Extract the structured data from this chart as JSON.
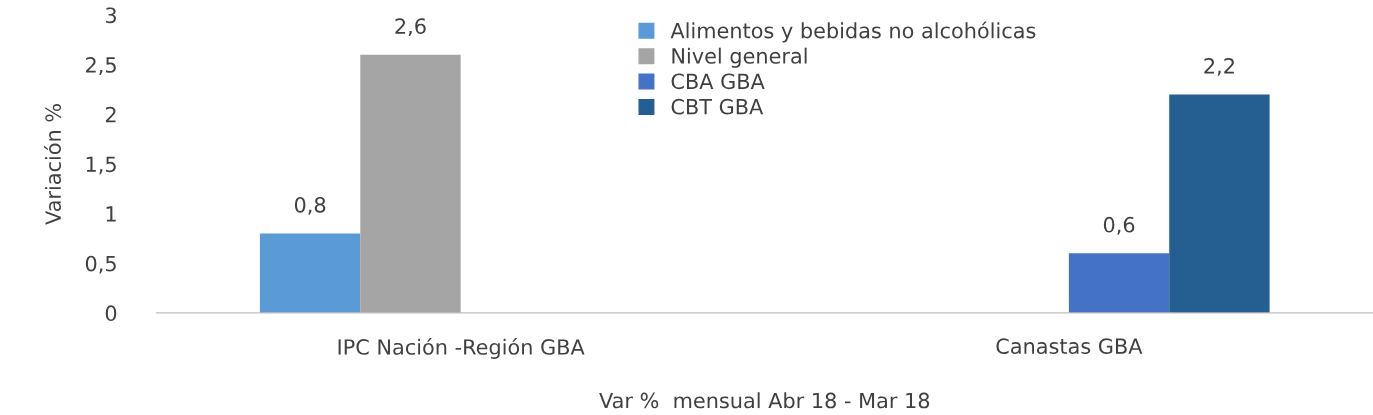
{
  "chart_data": {
    "type": "bar",
    "categories": [
      "IPC Nación -Región GBA",
      "Canastas GBA"
    ],
    "xlabel": "Var %  mensual Abr 18 - Mar 18",
    "ylabel": "Variación %",
    "ylim": [
      0,
      3
    ],
    "yticks": [
      0,
      {
        "value": 0.5,
        "label": "0,5"
      },
      1,
      {
        "value": 1.5,
        "label": "1,5"
      },
      2,
      {
        "value": 2.5,
        "label": "2,5"
      },
      3
    ],
    "series": [
      {
        "name": "Alimentos y bebidas no alcohólicas",
        "color": "#5b9bd5",
        "values": [
          0.8,
          null
        ],
        "value_labels": [
          "0,8",
          null
        ]
      },
      {
        "name": "Nivel general",
        "color": "#a5a5a5",
        "values": [
          2.6,
          null
        ],
        "value_labels": [
          "2,6",
          null
        ]
      },
      {
        "name": "CBA GBA",
        "color": "#4472c4",
        "values": [
          null,
          0.6
        ],
        "value_labels": [
          null,
          "0,6"
        ]
      },
      {
        "name": "CBT GBA",
        "color": "#255e91",
        "values": [
          null,
          2.2
        ],
        "value_labels": [
          null,
          "2,2"
        ]
      }
    ],
    "grid": false,
    "legend": "top"
  }
}
